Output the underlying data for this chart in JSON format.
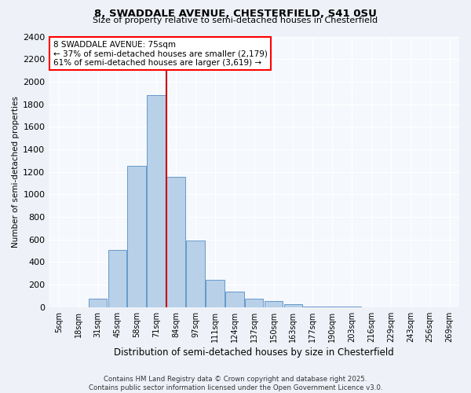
{
  "title1": "8, SWADDALE AVENUE, CHESTERFIELD, S41 0SU",
  "title2": "Size of property relative to semi-detached houses in Chesterfield",
  "xlabel": "Distribution of semi-detached houses by size in Chesterfield",
  "ylabel": "Number of semi-detached properties",
  "categories": [
    "5sqm",
    "18sqm",
    "31sqm",
    "45sqm",
    "58sqm",
    "71sqm",
    "84sqm",
    "97sqm",
    "111sqm",
    "124sqm",
    "137sqm",
    "150sqm",
    "163sqm",
    "177sqm",
    "190sqm",
    "203sqm",
    "216sqm",
    "229sqm",
    "243sqm",
    "256sqm",
    "269sqm"
  ],
  "values": [
    2,
    2,
    75,
    510,
    1250,
    1880,
    1155,
    590,
    245,
    140,
    75,
    55,
    25,
    8,
    5,
    3,
    2,
    1,
    1,
    1,
    1
  ],
  "bar_color": "#b8d0e8",
  "bar_edge_color": "#6699cc",
  "vline_color": "#cc0000",
  "annotation_text_line1": "8 SWADDALE AVENUE: 75sqm",
  "annotation_text_line2": "← 37% of semi-detached houses are smaller (2,179)",
  "annotation_text_line3": "61% of semi-detached houses are larger (3,619) →",
  "ylim": [
    0,
    2400
  ],
  "yticks": [
    0,
    200,
    400,
    600,
    800,
    1000,
    1200,
    1400,
    1600,
    1800,
    2000,
    2200,
    2400
  ],
  "footer_line1": "Contains HM Land Registry data © Crown copyright and database right 2025.",
  "footer_line2": "Contains public sector information licensed under the Open Government Licence v3.0.",
  "bg_color": "#eef2f8",
  "plot_bg_color": "#f5f8fd",
  "grid_color": "#ffffff"
}
